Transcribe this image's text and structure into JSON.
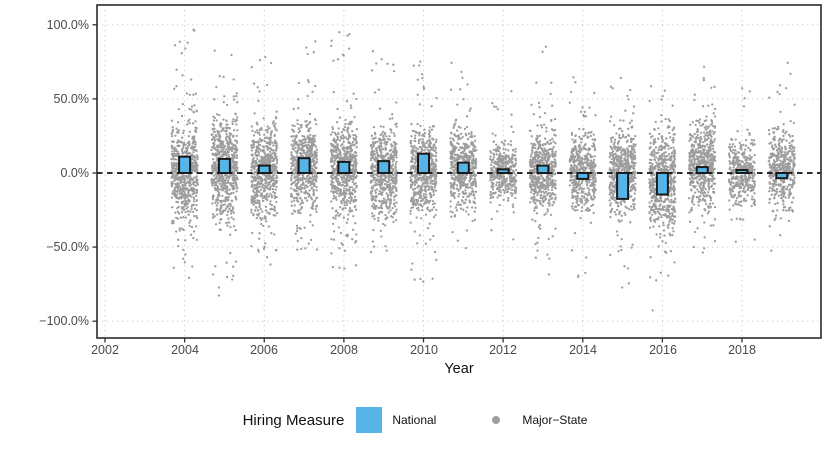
{
  "colors": {
    "national_fill": "#56B4E9",
    "bar_stroke": "#1a1a1a",
    "point_fill": "#9D9D9D",
    "grid": "#C9C9C9",
    "zero_line": "#111111",
    "panel_border": "#2B2B2B",
    "tick_mark": "#333333"
  },
  "chart_data": {
    "type": "scatter",
    "title": "",
    "xlabel": "Year",
    "ylabel": "",
    "x_tick_labels": [
      "2002",
      "2004",
      "2006",
      "2008",
      "2010",
      "2012",
      "2014",
      "2016",
      "2018"
    ],
    "x_tick_values": [
      2002,
      2004,
      2006,
      2008,
      2010,
      2012,
      2014,
      2016,
      2018
    ],
    "y_tick_labels": [
      "100.0%",
      "50.0%",
      "0.0%",
      "−50.0%",
      "−100.0%"
    ],
    "y_tick_values": [
      100,
      50,
      0,
      -50,
      -100
    ],
    "xlim": [
      2001.8,
      2020
    ],
    "ylim": [
      -111,
      113
    ],
    "grid": "dotted-major",
    "zero_reference_line": {
      "y": 0,
      "style": "dashed"
    },
    "legend": {
      "title": "Hiring Measure",
      "entries": [
        {
          "label": "National",
          "marker": "square",
          "color": "#56B4E9"
        },
        {
          "label": "Major−State",
          "marker": "dot",
          "color": "#9E9E9E"
        }
      ]
    },
    "series": [
      {
        "name": "National",
        "type": "bar",
        "color": "#56B4E9",
        "x": [
          2004,
          2005,
          2006,
          2007,
          2008,
          2009,
          2010,
          2011,
          2012,
          2013,
          2014,
          2015,
          2016,
          2017,
          2018,
          2019
        ],
        "values": [
          11,
          9.5,
          5,
          10,
          7.5,
          8,
          13,
          7,
          2.5,
          5,
          -4,
          -17.5,
          -14.5,
          4,
          2,
          -3.5
        ]
      },
      {
        "name": "Major-State",
        "type": "jitter-points",
        "color": "#9D9D9D",
        "distribution": [
          {
            "year": 2004,
            "dense_low": -32,
            "dense_high": 35,
            "min": -72,
            "max": 98,
            "n": 620
          },
          {
            "year": 2005,
            "dense_low": -33,
            "dense_high": 38,
            "min": -88,
            "max": 92,
            "n": 620
          },
          {
            "year": 2006,
            "dense_low": -36,
            "dense_high": 33,
            "min": -62,
            "max": 82,
            "n": 600
          },
          {
            "year": 2007,
            "dense_low": -26,
            "dense_high": 36,
            "min": -52,
            "max": 96,
            "n": 580
          },
          {
            "year": 2008,
            "dense_low": -30,
            "dense_high": 34,
            "min": -72,
            "max": 97,
            "n": 620
          },
          {
            "year": 2009,
            "dense_low": -30,
            "dense_high": 31,
            "min": -56,
            "max": 88,
            "n": 560
          },
          {
            "year": 2010,
            "dense_low": -28,
            "dense_high": 33,
            "min": -80,
            "max": 92,
            "n": 580
          },
          {
            "year": 2011,
            "dense_low": -26,
            "dense_high": 31,
            "min": -56,
            "max": 76,
            "n": 500
          },
          {
            "year": 2012,
            "dense_low": -20,
            "dense_high": 21,
            "min": -45,
            "max": 65,
            "n": 380
          },
          {
            "year": 2013,
            "dense_low": -26,
            "dense_high": 29,
            "min": -70,
            "max": 90,
            "n": 540
          },
          {
            "year": 2014,
            "dense_low": -25,
            "dense_high": 27,
            "min": -76,
            "max": 66,
            "n": 500
          },
          {
            "year": 2015,
            "dense_low": -28,
            "dense_high": 29,
            "min": -78,
            "max": 70,
            "n": 540
          },
          {
            "year": 2016,
            "dense_low": -40,
            "dense_high": 30,
            "min": -97,
            "max": 68,
            "n": 600
          },
          {
            "year": 2017,
            "dense_low": -25,
            "dense_high": 35,
            "min": -55,
            "max": 76,
            "n": 580
          },
          {
            "year": 2018,
            "dense_low": -22,
            "dense_high": 22,
            "min": -50,
            "max": 62,
            "n": 380
          },
          {
            "year": 2019,
            "dense_low": -25,
            "dense_high": 30,
            "min": -55,
            "max": 76,
            "n": 420
          }
        ]
      }
    ]
  }
}
